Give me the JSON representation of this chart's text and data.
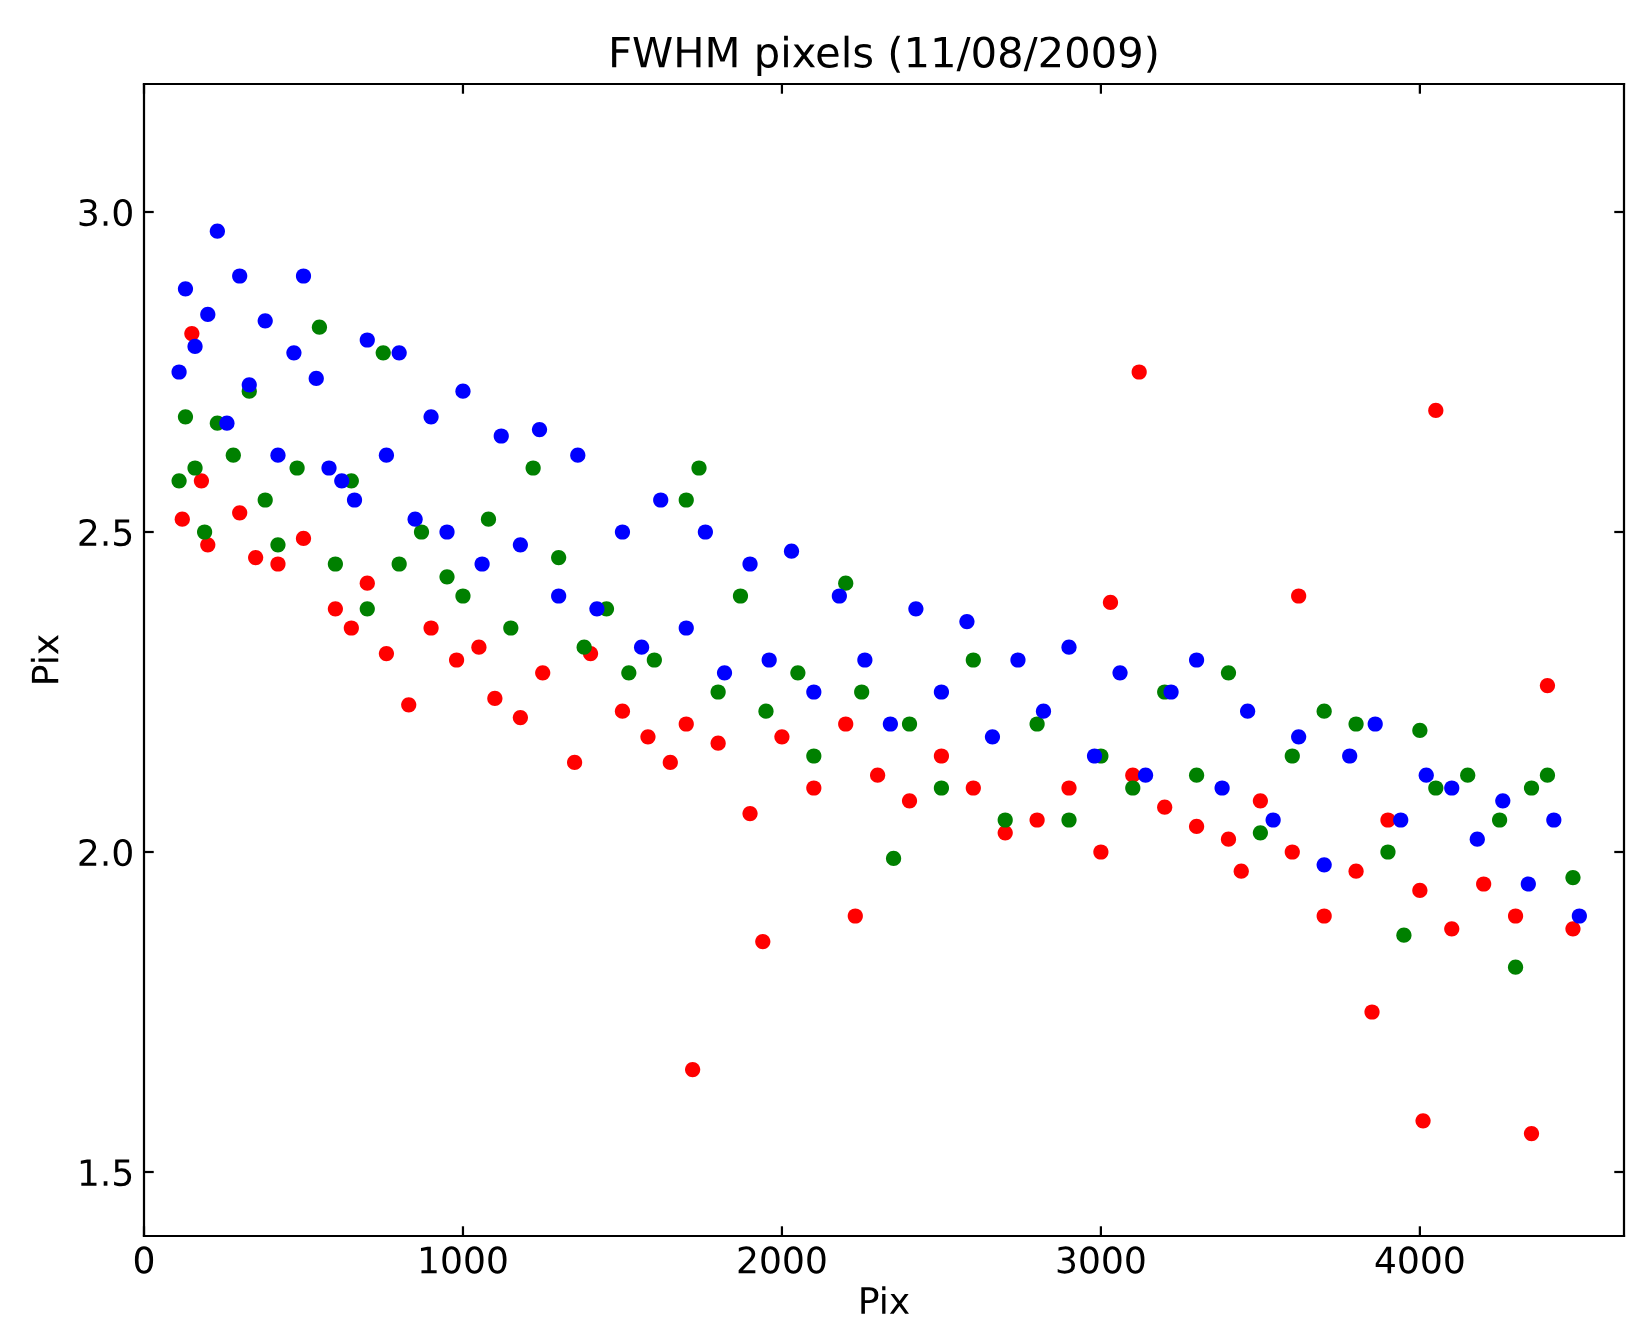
{
  "chart_data": {
    "type": "scatter",
    "title": "FWHM pixels (11/08/2009)",
    "xlabel": "Pix",
    "ylabel": "Pix",
    "xlim": [
      0,
      4640
    ],
    "ylim": [
      1.4,
      3.2
    ],
    "xticks": [
      0,
      1000,
      2000,
      3000,
      4000
    ],
    "yticks": [
      1.5,
      {
        "value": 2,
        "label": "2.0"
      },
      2.5,
      {
        "value": 3,
        "label": "3.0"
      }
    ],
    "grid": false,
    "marker": "circle",
    "series": [
      {
        "color": "#ff0000",
        "x": [
          120,
          150,
          180,
          200,
          300,
          350,
          420,
          500,
          600,
          650,
          700,
          760,
          830,
          900,
          980,
          1050,
          1100,
          1180,
          1250,
          1350,
          1400,
          1500,
          1580,
          1650,
          1700,
          1720,
          1800,
          1900,
          1940,
          2000,
          2100,
          2200,
          2230,
          2300,
          2400,
          2500,
          2600,
          2700,
          2800,
          2900,
          3000,
          3030,
          3100,
          3120,
          3200,
          3300,
          3400,
          3440,
          3500,
          3600,
          3620,
          3700,
          3800,
          3850,
          3900,
          4000,
          4010,
          4050,
          4100,
          4200,
          4300,
          4350,
          4400,
          4480
        ],
        "values": [
          2.52,
          2.81,
          2.58,
          2.48,
          2.53,
          2.46,
          2.45,
          2.49,
          2.38,
          2.35,
          2.42,
          2.31,
          2.23,
          2.35,
          2.3,
          2.32,
          2.24,
          2.21,
          2.28,
          2.14,
          2.31,
          2.22,
          2.18,
          2.14,
          2.2,
          1.66,
          2.17,
          2.06,
          1.86,
          2.18,
          2.1,
          2.2,
          1.9,
          2.12,
          2.08,
          2.15,
          2.1,
          2.03,
          2.05,
          2.1,
          2.0,
          2.39,
          2.12,
          2.75,
          2.07,
          2.04,
          2.02,
          1.97,
          2.08,
          2.0,
          2.4,
          1.9,
          1.97,
          1.75,
          2.05,
          1.94,
          1.58,
          2.69,
          1.88,
          1.95,
          1.9,
          1.56,
          2.26,
          1.88
        ]
      },
      {
        "color": "#008000",
        "x": [
          110,
          130,
          160,
          190,
          230,
          280,
          330,
          380,
          420,
          480,
          550,
          600,
          650,
          700,
          750,
          800,
          870,
          950,
          1000,
          1080,
          1150,
          1220,
          1300,
          1380,
          1450,
          1520,
          1600,
          1700,
          1740,
          1800,
          1870,
          1950,
          2050,
          2100,
          2200,
          2250,
          2350,
          2400,
          2500,
          2600,
          2700,
          2800,
          2900,
          3000,
          3100,
          3200,
          3300,
          3400,
          3500,
          3600,
          3700,
          3800,
          3900,
          3950,
          4000,
          4050,
          4150,
          4250,
          4300,
          4350,
          4400,
          4480
        ],
        "values": [
          2.58,
          2.68,
          2.6,
          2.5,
          2.67,
          2.62,
          2.72,
          2.55,
          2.48,
          2.6,
          2.82,
          2.45,
          2.58,
          2.38,
          2.78,
          2.45,
          2.5,
          2.43,
          2.4,
          2.52,
          2.35,
          2.6,
          2.46,
          2.32,
          2.38,
          2.28,
          2.3,
          2.55,
          2.6,
          2.25,
          2.4,
          2.22,
          2.28,
          2.15,
          2.42,
          2.25,
          1.99,
          2.2,
          2.1,
          2.3,
          2.05,
          2.2,
          2.05,
          2.15,
          2.1,
          2.25,
          2.12,
          2.28,
          2.03,
          2.15,
          2.22,
          2.2,
          2.0,
          1.87,
          2.19,
          2.1,
          2.12,
          2.05,
          1.82,
          2.1,
          2.12,
          1.96
        ]
      },
      {
        "color": "#0000ff",
        "x": [
          110,
          130,
          160,
          200,
          230,
          260,
          300,
          330,
          380,
          420,
          470,
          500,
          540,
          580,
          620,
          660,
          700,
          760,
          800,
          850,
          900,
          950,
          1000,
          1060,
          1120,
          1180,
          1240,
          1300,
          1360,
          1420,
          1500,
          1560,
          1620,
          1700,
          1760,
          1820,
          1900,
          1960,
          2030,
          2100,
          2180,
          2260,
          2340,
          2420,
          2500,
          2580,
          2660,
          2740,
          2820,
          2900,
          2980,
          3060,
          3140,
          3220,
          3300,
          3380,
          3460,
          3540,
          3620,
          3700,
          3780,
          3860,
          3940,
          4020,
          4100,
          4180,
          4260,
          4340,
          4420,
          4500
        ],
        "values": [
          2.75,
          2.88,
          2.79,
          2.84,
          2.97,
          2.67,
          2.9,
          2.73,
          2.83,
          2.62,
          2.78,
          2.9,
          2.74,
          2.6,
          2.58,
          2.55,
          2.8,
          2.62,
          2.78,
          2.52,
          2.68,
          2.5,
          2.72,
          2.45,
          2.65,
          2.48,
          2.66,
          2.4,
          2.62,
          2.38,
          2.5,
          2.32,
          2.55,
          2.35,
          2.5,
          2.28,
          2.45,
          2.3,
          2.47,
          2.25,
          2.4,
          2.3,
          2.2,
          2.38,
          2.25,
          2.36,
          2.18,
          2.3,
          2.22,
          2.32,
          2.15,
          2.28,
          2.12,
          2.25,
          2.3,
          2.1,
          2.22,
          2.05,
          2.18,
          1.98,
          2.15,
          2.2,
          2.05,
          2.12,
          2.1,
          2.02,
          2.08,
          1.95,
          2.05,
          1.9
        ]
      }
    ]
  }
}
